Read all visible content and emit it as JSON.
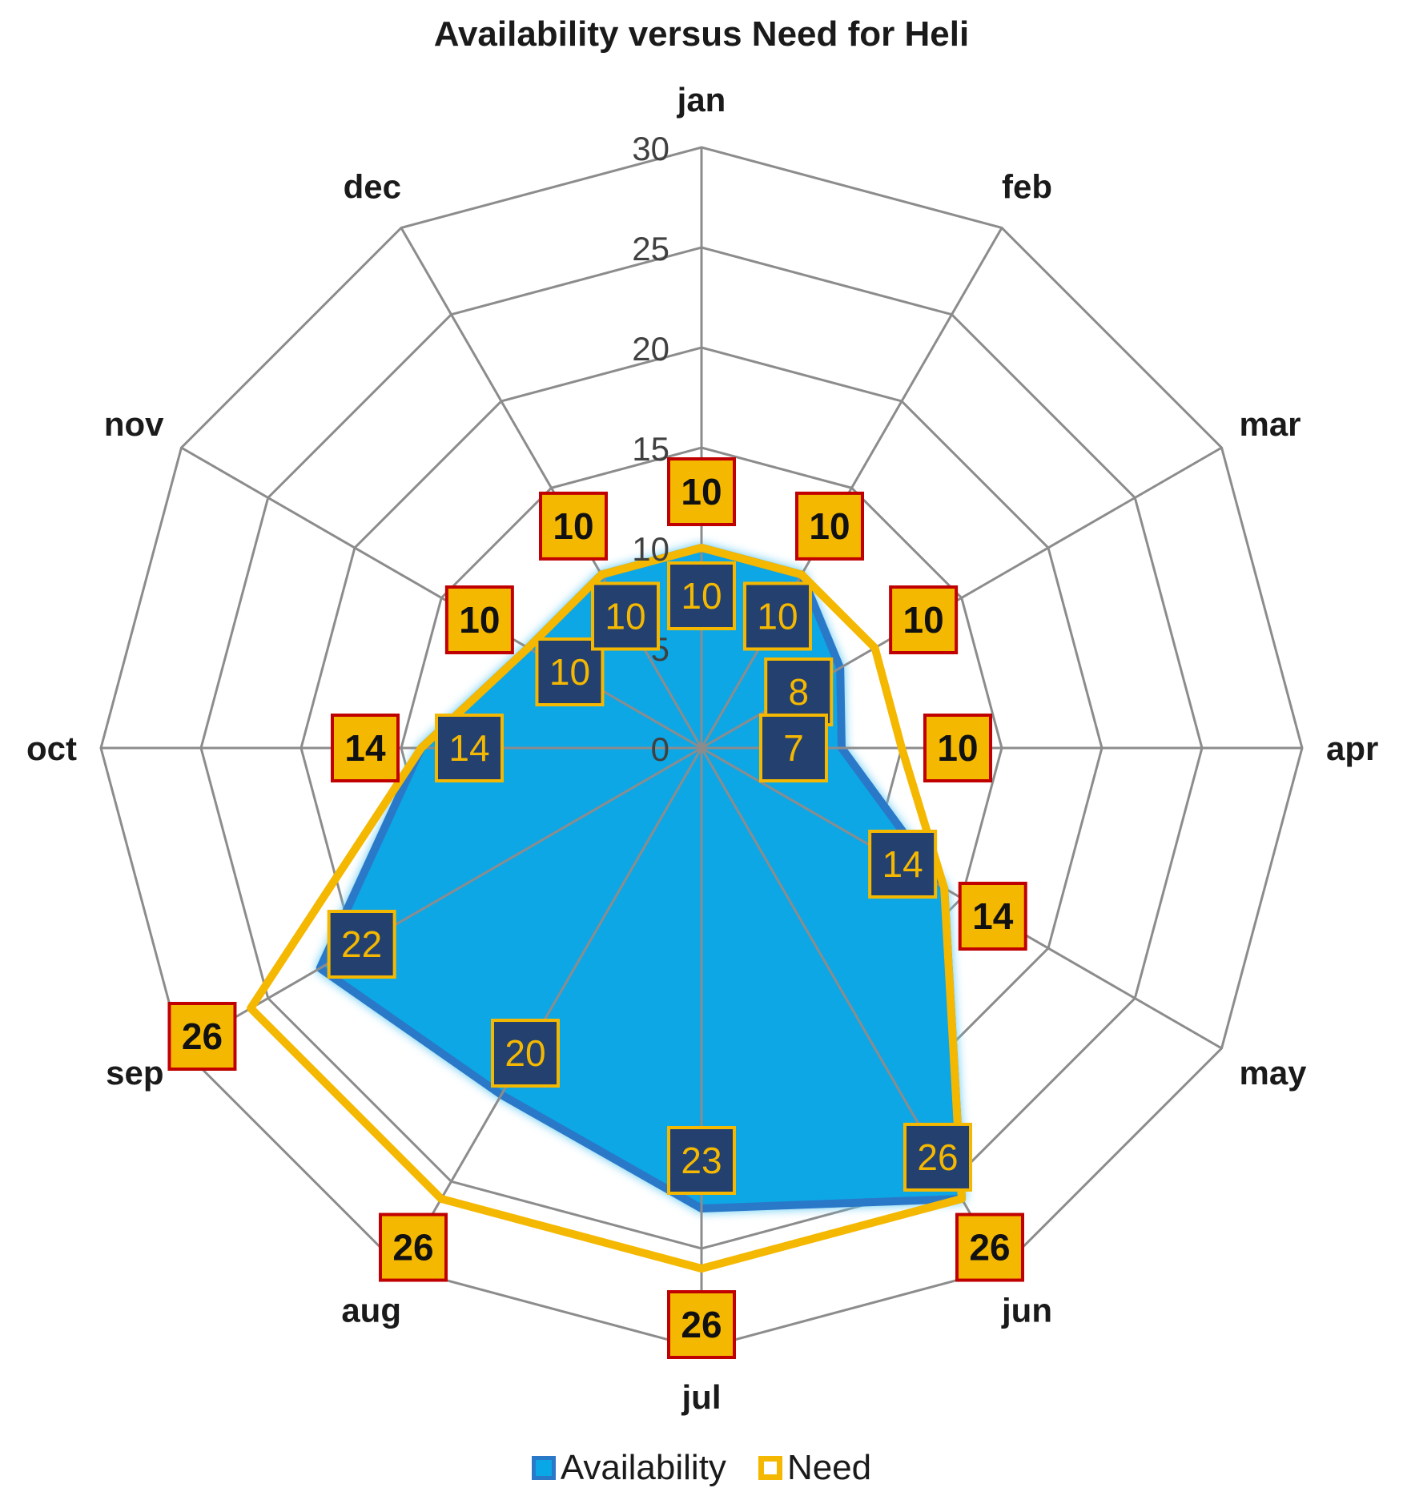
{
  "chart_data": {
    "type": "radar",
    "title": "Availability versus Need for Heli",
    "categories": [
      "jan",
      "feb",
      "mar",
      "apr",
      "may",
      "jun",
      "jul",
      "aug",
      "sep",
      "oct",
      "nov",
      "dec"
    ],
    "radial_ticks": [
      "0",
      "5",
      "10",
      "15",
      "20",
      "25",
      "30"
    ],
    "rlim": [
      0,
      30
    ],
    "grid": true,
    "legend_position": "bottom",
    "series": [
      {
        "name": "Availability",
        "values": [
          10,
          10,
          8,
          7,
          14,
          26,
          23,
          20,
          22,
          14,
          10,
          10
        ],
        "color": "#0aa7e6",
        "border_color": "#2a79c9",
        "label_fill": "#24406e",
        "label_text": "#f5b800"
      },
      {
        "name": "Need",
        "values": [
          10,
          10,
          10,
          10,
          14,
          26,
          26,
          26,
          26,
          14,
          10,
          10
        ],
        "color": "#f5b800",
        "label_fill": "#f5b800",
        "label_border": "#c00000",
        "label_text": "#111111"
      }
    ]
  },
  "legend": {
    "availability_label": "Availability",
    "need_label": "Need"
  }
}
